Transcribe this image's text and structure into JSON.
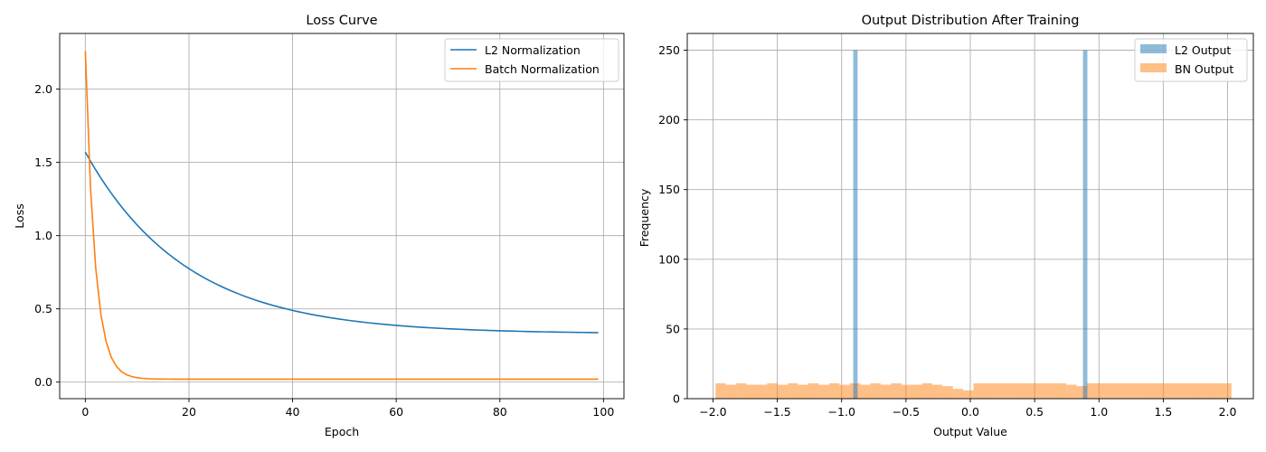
{
  "chart_data": [
    {
      "type": "line",
      "title": "Loss Curve",
      "xlabel": "Epoch",
      "ylabel": "Loss",
      "xlim": [
        -4.95,
        103.95
      ],
      "ylim": [
        -0.113,
        2.38
      ],
      "xticks": [
        0,
        20,
        40,
        60,
        80,
        100
      ],
      "yticks": [
        0.0,
        0.5,
        1.0,
        1.5,
        2.0
      ],
      "xtick_labels": [
        "0",
        "20",
        "40",
        "60",
        "80",
        "100"
      ],
      "ytick_labels": [
        "0.0",
        "0.5",
        "1.0",
        "1.5",
        "2.0"
      ],
      "grid": true,
      "legend_position": "top-right",
      "series": [
        {
          "name": "L2 Normalization",
          "color": "#1f77b4",
          "initial": 1.57,
          "final": 0.33,
          "tau": 19.5,
          "epochs": 100
        },
        {
          "name": "Batch Normalization",
          "color": "#ff7f0e",
          "initial": 2.26,
          "final": 0.02,
          "tau": 1.85,
          "epochs": 100
        }
      ]
    },
    {
      "type": "histogram",
      "title": "Output Distribution After Training",
      "xlabel": "Output Value",
      "ylabel": "Frequency",
      "xlim": [
        -2.2,
        2.2
      ],
      "ylim": [
        0,
        262
      ],
      "xticks": [
        -2.0,
        -1.5,
        -1.0,
        -0.5,
        0.0,
        0.5,
        1.0,
        1.5,
        2.0
      ],
      "yticks": [
        0,
        50,
        100,
        150,
        200,
        250
      ],
      "xtick_labels": [
        "−2.0",
        "−1.5",
        "−1.0",
        "−0.5",
        "0.0",
        "0.5",
        "1.0",
        "1.5",
        "2.0"
      ],
      "ytick_labels": [
        "0",
        "50",
        "100",
        "150",
        "200",
        "250"
      ],
      "grid": true,
      "legend_position": "top-right",
      "series": [
        {
          "name": "L2 Output",
          "color": "#1f77b4",
          "opacity": 0.5,
          "bins": [
            {
              "x0": -0.91,
              "x1": -0.876,
              "count": 250
            },
            {
              "x0": 0.876,
              "x1": 0.91,
              "count": 250
            }
          ]
        },
        {
          "name": "BN Output",
          "color": "#ff7f0e",
          "opacity": 0.5,
          "bin_start": -1.98,
          "bin_width": 0.0802,
          "counts": [
            11,
            10,
            11,
            10,
            10,
            11,
            10,
            11,
            10,
            11,
            10,
            11,
            10,
            11,
            10,
            11,
            10,
            11,
            10,
            10,
            11,
            10,
            9,
            7,
            6,
            11,
            11,
            11,
            11,
            11,
            11,
            11,
            11,
            11,
            10,
            9,
            11,
            11,
            11,
            11,
            11,
            11,
            11,
            11,
            11,
            11,
            11,
            11,
            11,
            11
          ]
        }
      ]
    }
  ]
}
